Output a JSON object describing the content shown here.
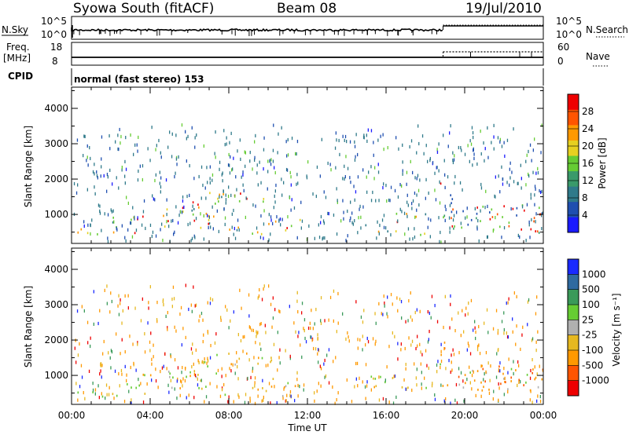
{
  "header": {
    "station": "Syowa South (fitACF)",
    "beam": "Beam 08",
    "date": "19/Jul/2010"
  },
  "summary_panels": {
    "nsky_label": "N.Sky",
    "nsky_ticks": [
      "10^5",
      "10^0"
    ],
    "nsearch_label": "N.Search",
    "nsearch_ticks": [
      "10^5",
      "10^0"
    ],
    "freq_label": "Freq.",
    "freq_unit": "[MHz]",
    "freq_ticks": [
      "18",
      "8"
    ],
    "nave_label": "Nave",
    "nave_ticks": [
      "60",
      "0"
    ],
    "cpid_label": "CPID",
    "cpid_text": "normal (fast stereo) 153"
  },
  "colors": {
    "power_scale": [
      "#1a1aff",
      "#1f4fb0",
      "#2f7a8a",
      "#3a9a6a",
      "#66cc33",
      "#e6d020",
      "#ff9900",
      "#ff5500",
      "#ee0000"
    ],
    "velocity_scale": [
      "#ee0000",
      "#ff5500",
      "#ff9900",
      "#e6b820",
      "#b0b0b0",
      "#66cc33",
      "#3a9a5a",
      "#2f6aa0",
      "#1a2aff"
    ]
  },
  "chart_data": [
    {
      "type": "heatmap",
      "name": "power",
      "xlabel": "Time UT",
      "ylabel": "Slant Range [km]",
      "x_ticks": [
        "00:00",
        "04:00",
        "08:00",
        "12:00",
        "16:00",
        "20:00",
        "00:00"
      ],
      "y_ticks": [
        1000,
        2000,
        3000,
        4000
      ],
      "xlim": [
        0,
        24
      ],
      "ylim": [
        180,
        4600
      ],
      "colorbar_label": "Power [dB]",
      "colorbar_ticks": [
        "28",
        "24",
        "20",
        "16",
        "12",
        "8",
        "4"
      ],
      "clim": [
        0,
        32
      ]
    },
    {
      "type": "heatmap",
      "name": "velocity",
      "xlabel": "Time UT",
      "ylabel": "Slant Range [km]",
      "x_ticks": [
        "00:00",
        "04:00",
        "08:00",
        "12:00",
        "16:00",
        "20:00",
        "00:00"
      ],
      "y_ticks": [
        1000,
        2000,
        3000,
        4000
      ],
      "xlim": [
        0,
        24
      ],
      "ylim": [
        180,
        4600
      ],
      "colorbar_label": "Velocity [m s⁻¹]",
      "colorbar_ticks": [
        "1000",
        "500",
        "100",
        "25",
        "-25",
        "-100",
        "-500",
        "-1000"
      ]
    }
  ]
}
